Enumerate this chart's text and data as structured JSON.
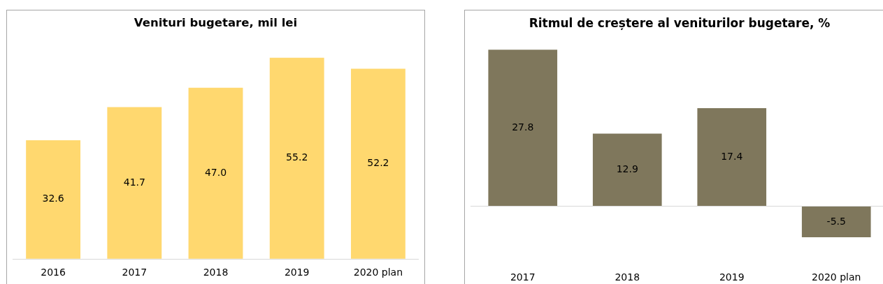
{
  "chart_data": [
    {
      "type": "bar",
      "title": "Venituri bugetare, mil lei",
      "categories": [
        "2016",
        "2017",
        "2018",
        "2019",
        "2020 plan"
      ],
      "values": [
        32.6,
        41.7,
        47.0,
        55.2,
        52.2
      ],
      "value_labels": [
        "32.6",
        "41.7",
        "47.0",
        "55.2",
        "52.2"
      ],
      "color": "#ffd86f",
      "tick_labels": "x"
    },
    {
      "type": "bar",
      "title": "Ritmul de creștere al veniturilor bugetare, %",
      "categories": [
        "2017",
        "2018",
        "2019",
        "2020 plan"
      ],
      "values": [
        27.8,
        12.9,
        17.4,
        -5.5
      ],
      "data_labels": true,
      "color": "#7f775c",
      "tick_labels": "x"
    }
  ]
}
